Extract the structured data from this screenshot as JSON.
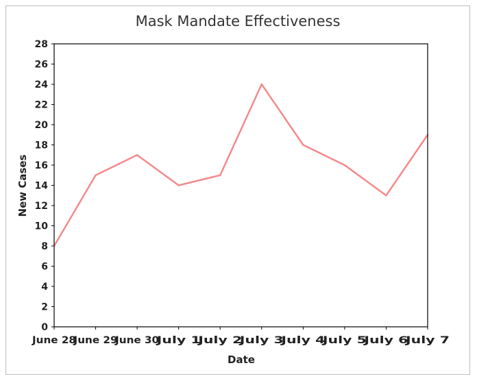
{
  "chart_data": {
    "type": "line",
    "title": "Mask Mandate Effectiveness",
    "xlabel": "Date",
    "ylabel": "New Cases",
    "categories": [
      "June 28",
      "June 29",
      "June 30",
      "July 1",
      "July 2",
      "July 3",
      "July 4",
      "July 5",
      "July 6",
      "July 7"
    ],
    "series": [
      {
        "values": [
          8,
          15,
          17,
          14,
          15,
          24,
          18,
          16,
          13,
          19
        ],
        "color": "#f4898b"
      }
    ],
    "ylim": [
      0,
      28
    ],
    "yticks": [
      0,
      2,
      4,
      6,
      8,
      10,
      12,
      14,
      16,
      18,
      20,
      22,
      24,
      26,
      28
    ],
    "grid": false,
    "legend": "none"
  }
}
